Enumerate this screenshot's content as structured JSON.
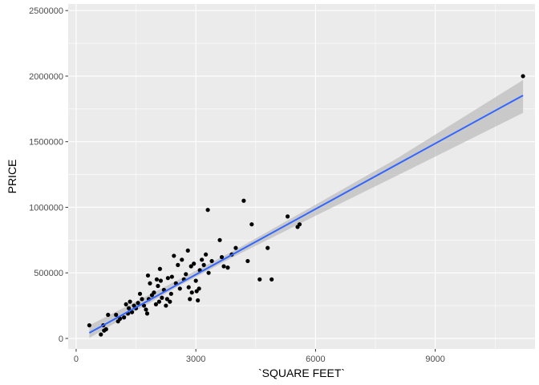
{
  "chart_data": {
    "type": "scatter",
    "xlabel": "`SQUARE FEET`",
    "ylabel": "PRICE",
    "xlim": [
      -200,
      11500
    ],
    "ylim": [
      -80000,
      2550000
    ],
    "x_ticks": [
      0,
      3000,
      6000,
      9000
    ],
    "x_minor_ticks": [
      1500,
      4500,
      7500,
      10500
    ],
    "y_ticks": [
      0,
      500000,
      1000000,
      1500000,
      2000000,
      2500000
    ],
    "y_minor_ticks": [
      250000,
      750000,
      1250000,
      1750000,
      2250000
    ],
    "x_tick_labels": [
      "0",
      "3000",
      "6000",
      "9000"
    ],
    "y_tick_labels": [
      "0",
      "500000",
      "1000000",
      "1500000",
      "2000000",
      "2500000"
    ],
    "grid": true,
    "background": "#ebebeb",
    "point_color": "#000000",
    "fit_line_color": "#3366ff",
    "ribbon_color": "#b3b3b3",
    "fit": {
      "method": "linear",
      "x_range": [
        330,
        11200
      ],
      "intercept": -13000,
      "slope": 166.6,
      "ci": [
        {
          "x": 330,
          "lower": 3000,
          "upper": 100000
        },
        {
          "x": 2500,
          "lower": 387000,
          "upper": 437000
        },
        {
          "x": 4000,
          "lower": 630000,
          "upper": 677000
        },
        {
          "x": 6000,
          "lower": 935000,
          "upper": 1020000
        },
        {
          "x": 8000,
          "lower": 1235000,
          "upper": 1365000
        },
        {
          "x": 11200,
          "lower": 1720000,
          "upper": 1970000
        }
      ]
    },
    "points": [
      {
        "x": 330,
        "y": 100000
      },
      {
        "x": 620,
        "y": 30000
      },
      {
        "x": 680,
        "y": 100000
      },
      {
        "x": 700,
        "y": 60000
      },
      {
        "x": 750,
        "y": 70000
      },
      {
        "x": 800,
        "y": 180000
      },
      {
        "x": 1000,
        "y": 180000
      },
      {
        "x": 1050,
        "y": 130000
      },
      {
        "x": 1100,
        "y": 150000
      },
      {
        "x": 1200,
        "y": 160000
      },
      {
        "x": 1250,
        "y": 260000
      },
      {
        "x": 1300,
        "y": 190000
      },
      {
        "x": 1320,
        "y": 230000
      },
      {
        "x": 1350,
        "y": 280000
      },
      {
        "x": 1400,
        "y": 200000
      },
      {
        "x": 1450,
        "y": 250000
      },
      {
        "x": 1500,
        "y": 230000
      },
      {
        "x": 1550,
        "y": 270000
      },
      {
        "x": 1600,
        "y": 340000
      },
      {
        "x": 1650,
        "y": 300000
      },
      {
        "x": 1700,
        "y": 250000
      },
      {
        "x": 1750,
        "y": 220000
      },
      {
        "x": 1780,
        "y": 190000
      },
      {
        "x": 1800,
        "y": 480000
      },
      {
        "x": 1820,
        "y": 300000
      },
      {
        "x": 1850,
        "y": 420000
      },
      {
        "x": 1900,
        "y": 330000
      },
      {
        "x": 1950,
        "y": 350000
      },
      {
        "x": 2000,
        "y": 260000
      },
      {
        "x": 2020,
        "y": 450000
      },
      {
        "x": 2050,
        "y": 400000
      },
      {
        "x": 2080,
        "y": 280000
      },
      {
        "x": 2100,
        "y": 530000
      },
      {
        "x": 2120,
        "y": 440000
      },
      {
        "x": 2150,
        "y": 310000
      },
      {
        "x": 2200,
        "y": 370000
      },
      {
        "x": 2250,
        "y": 250000
      },
      {
        "x": 2280,
        "y": 300000
      },
      {
        "x": 2300,
        "y": 460000
      },
      {
        "x": 2350,
        "y": 280000
      },
      {
        "x": 2380,
        "y": 340000
      },
      {
        "x": 2400,
        "y": 470000
      },
      {
        "x": 2450,
        "y": 630000
      },
      {
        "x": 2500,
        "y": 420000
      },
      {
        "x": 2550,
        "y": 560000
      },
      {
        "x": 2600,
        "y": 380000
      },
      {
        "x": 2650,
        "y": 600000
      },
      {
        "x": 2700,
        "y": 450000
      },
      {
        "x": 2750,
        "y": 490000
      },
      {
        "x": 2800,
        "y": 670000
      },
      {
        "x": 2820,
        "y": 390000
      },
      {
        "x": 2850,
        "y": 300000
      },
      {
        "x": 2880,
        "y": 550000
      },
      {
        "x": 2900,
        "y": 350000
      },
      {
        "x": 2950,
        "y": 570000
      },
      {
        "x": 3000,
        "y": 440000
      },
      {
        "x": 3020,
        "y": 360000
      },
      {
        "x": 3050,
        "y": 290000
      },
      {
        "x": 3080,
        "y": 380000
      },
      {
        "x": 3100,
        "y": 520000
      },
      {
        "x": 3150,
        "y": 600000
      },
      {
        "x": 3200,
        "y": 560000
      },
      {
        "x": 3250,
        "y": 640000
      },
      {
        "x": 3300,
        "y": 980000
      },
      {
        "x": 3320,
        "y": 500000
      },
      {
        "x": 3400,
        "y": 590000
      },
      {
        "x": 3600,
        "y": 750000
      },
      {
        "x": 3650,
        "y": 620000
      },
      {
        "x": 3700,
        "y": 550000
      },
      {
        "x": 3800,
        "y": 540000
      },
      {
        "x": 3900,
        "y": 640000
      },
      {
        "x": 4000,
        "y": 690000
      },
      {
        "x": 4200,
        "y": 1050000
      },
      {
        "x": 4300,
        "y": 590000
      },
      {
        "x": 4400,
        "y": 870000
      },
      {
        "x": 4600,
        "y": 450000
      },
      {
        "x": 4800,
        "y": 690000
      },
      {
        "x": 4900,
        "y": 450000
      },
      {
        "x": 5300,
        "y": 930000
      },
      {
        "x": 5550,
        "y": 850000
      },
      {
        "x": 5600,
        "y": 870000
      },
      {
        "x": 11200,
        "y": 2000000
      }
    ]
  }
}
